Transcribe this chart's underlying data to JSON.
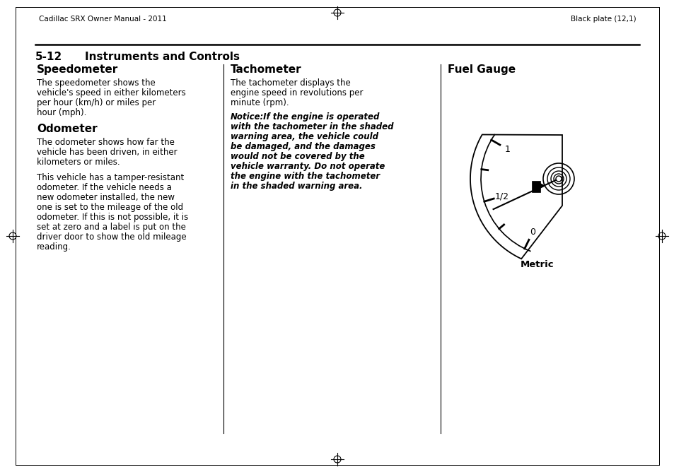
{
  "bg_color": "#ffffff",
  "page_width": 9.54,
  "page_height": 6.68,
  "header_left": "Cadillac SRX Owner Manual - 2011",
  "header_right": "Black plate (12,1)",
  "col1_title": "Speedometer",
  "col1_body1": "The speedometer shows the\nvehicle's speed in either kilometers\nper hour (km/h) or miles per\nhour (mph).",
  "col1_title2": "Odometer",
  "col1_body2": "The odometer shows how far the\nvehicle has been driven, in either\nkilometers or miles.",
  "col1_body3": "This vehicle has a tamper-resistant\nodometer. If the vehicle needs a\nnew odometer installed, the new\none is set to the mileage of the old\nodometer. If this is not possible, it is\nset at zero and a label is put on the\ndriver door to show the old mileage\nreading.",
  "col2_title": "Tachometer",
  "col2_body1": "The tachometer displays the\nengine speed in revolutions per\nminute (rpm).",
  "col2_notice_label": "Notice:",
  "col2_notice_rest": " If the engine is operated",
  "col2_notice_body": "with the tachometer in the shaded\nwarning area, the vehicle could\nbe damaged, and the damages\nwould not be covered by the\nvehicle warranty. Do not operate\nthe engine with the tachometer\nin the shaded warning area.",
  "col3_title": "Fuel Gauge",
  "col3_metric": "Metric",
  "text_color": "#000000"
}
